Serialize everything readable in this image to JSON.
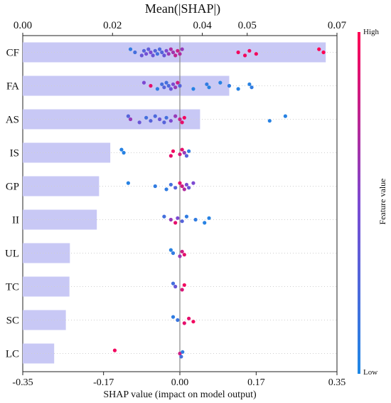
{
  "chart_data": {
    "type": "bar+scatter",
    "title": "Mean(|SHAP|)",
    "xlabel": "SHAP value (impact on model output)",
    "colorbar": {
      "label": "Feature value",
      "high": "High",
      "low": "Low",
      "low_color": "#1e88e5",
      "high_color": "#ff0052"
    },
    "top_axis": {
      "ticks": [
        "0.00",
        "0.02",
        "0.04",
        "0.05",
        "0.07"
      ],
      "tick_values": [
        0.0,
        0.02,
        0.04,
        0.05,
        0.07
      ],
      "range": [
        0,
        0.07
      ]
    },
    "bottom_axis": {
      "ticks": [
        "-0.35",
        "-0.17",
        "0.00",
        "0.17",
        "0.35"
      ],
      "tick_values": [
        -0.35,
        -0.17,
        0.0,
        0.17,
        0.35
      ],
      "range": [
        -0.35,
        0.35
      ]
    },
    "bar_color": "#c8c8f5",
    "features": [
      "CF",
      "FA",
      "AS",
      "IS",
      "GP",
      "II",
      "UL",
      "TC",
      "SC",
      "LC"
    ],
    "mean_abs_shap": [
      0.0675,
      0.046,
      0.0395,
      0.0195,
      0.017,
      0.0165,
      0.0105,
      0.0104,
      0.0096,
      0.007
    ],
    "shap_points": {
      "CF": [
        {
          "x": -0.11,
          "v": 0.1
        },
        {
          "x": -0.1,
          "v": 0.2
        },
        {
          "x": -0.085,
          "v": 0.4
        },
        {
          "x": -0.08,
          "v": 0.3
        },
        {
          "x": -0.075,
          "v": 0.45
        },
        {
          "x": -0.07,
          "v": 0.35
        },
        {
          "x": -0.065,
          "v": 0.5
        },
        {
          "x": -0.06,
          "v": 0.4
        },
        {
          "x": -0.055,
          "v": 0.3
        },
        {
          "x": -0.05,
          "v": 0.2
        },
        {
          "x": -0.045,
          "v": 0.25
        },
        {
          "x": -0.04,
          "v": 0.3
        },
        {
          "x": -0.035,
          "v": 0.4
        },
        {
          "x": -0.03,
          "v": 0.5
        },
        {
          "x": -0.025,
          "v": 0.6
        },
        {
          "x": -0.02,
          "v": 0.7
        },
        {
          "x": -0.015,
          "v": 0.65
        },
        {
          "x": -0.01,
          "v": 0.75
        },
        {
          "x": -0.005,
          "v": 0.8
        },
        {
          "x": 0.0,
          "v": 0.7
        },
        {
          "x": 0.005,
          "v": 0.6
        },
        {
          "x": 0.13,
          "v": 0.95
        },
        {
          "x": 0.145,
          "v": 0.95
        },
        {
          "x": 0.155,
          "v": 0.95
        },
        {
          "x": 0.17,
          "v": 0.95
        },
        {
          "x": 0.31,
          "v": 1.0
        },
        {
          "x": 0.32,
          "v": 1.0
        }
      ],
      "FA": [
        {
          "x": -0.08,
          "v": 0.5
        },
        {
          "x": -0.065,
          "v": 0.9
        },
        {
          "x": -0.05,
          "v": 0.1
        },
        {
          "x": -0.04,
          "v": 0.2
        },
        {
          "x": -0.035,
          "v": 0.3
        },
        {
          "x": -0.03,
          "v": 0.2
        },
        {
          "x": -0.025,
          "v": 0.25
        },
        {
          "x": -0.02,
          "v": 0.4
        },
        {
          "x": -0.015,
          "v": 0.5
        },
        {
          "x": -0.01,
          "v": 0.6
        },
        {
          "x": -0.005,
          "v": 0.8
        },
        {
          "x": 0.0,
          "v": 0.3
        },
        {
          "x": 0.03,
          "v": 0.05
        },
        {
          "x": 0.06,
          "v": 0.1
        },
        {
          "x": 0.065,
          "v": 0.05
        },
        {
          "x": 0.09,
          "v": 0.05
        },
        {
          "x": 0.11,
          "v": 0.1
        },
        {
          "x": 0.13,
          "v": 0.05
        },
        {
          "x": 0.155,
          "v": 0.05
        },
        {
          "x": 0.16,
          "v": 0.1
        }
      ],
      "AS": [
        {
          "x": -0.115,
          "v": 0.3
        },
        {
          "x": -0.11,
          "v": 0.6
        },
        {
          "x": -0.09,
          "v": 0.4
        },
        {
          "x": -0.075,
          "v": 0.2
        },
        {
          "x": -0.065,
          "v": 0.3
        },
        {
          "x": -0.055,
          "v": 0.25
        },
        {
          "x": -0.045,
          "v": 0.4
        },
        {
          "x": -0.035,
          "v": 0.3
        },
        {
          "x": -0.03,
          "v": 0.2
        },
        {
          "x": -0.02,
          "v": 0.5
        },
        {
          "x": -0.01,
          "v": 0.6
        },
        {
          "x": 0.0,
          "v": 0.8
        },
        {
          "x": 0.005,
          "v": 0.9
        },
        {
          "x": 0.01,
          "v": 0.95
        },
        {
          "x": 0.2,
          "v": 0.05
        },
        {
          "x": 0.235,
          "v": 0.05
        }
      ],
      "IS": [
        {
          "x": -0.13,
          "v": 0.05
        },
        {
          "x": -0.125,
          "v": 0.05
        },
        {
          "x": -0.02,
          "v": 0.9
        },
        {
          "x": -0.015,
          "v": 0.95
        },
        {
          "x": 0.0,
          "v": 0.85
        },
        {
          "x": 0.005,
          "v": 0.9
        },
        {
          "x": 0.01,
          "v": 0.6
        },
        {
          "x": 0.015,
          "v": 0.3
        },
        {
          "x": 0.02,
          "v": 0.1
        }
      ],
      "GP": [
        {
          "x": -0.115,
          "v": 0.05
        },
        {
          "x": -0.055,
          "v": 0.1
        },
        {
          "x": -0.03,
          "v": 0.1
        },
        {
          "x": -0.02,
          "v": 0.2
        },
        {
          "x": -0.01,
          "v": 0.3
        },
        {
          "x": 0.0,
          "v": 0.9
        },
        {
          "x": 0.005,
          "v": 0.8
        },
        {
          "x": 0.01,
          "v": 0.7
        },
        {
          "x": 0.015,
          "v": 0.5
        },
        {
          "x": 0.02,
          "v": 0.4
        },
        {
          "x": 0.03,
          "v": 0.5
        }
      ],
      "II": [
        {
          "x": -0.035,
          "v": 0.2
        },
        {
          "x": -0.02,
          "v": 0.6
        },
        {
          "x": -0.01,
          "v": 0.9
        },
        {
          "x": -0.005,
          "v": 0.5
        },
        {
          "x": 0.005,
          "v": 0.3
        },
        {
          "x": 0.015,
          "v": 0.1
        },
        {
          "x": 0.035,
          "v": 0.1
        },
        {
          "x": 0.055,
          "v": 0.05
        },
        {
          "x": 0.065,
          "v": 0.05
        }
      ],
      "UL": [
        {
          "x": -0.02,
          "v": 0.05
        },
        {
          "x": -0.015,
          "v": 0.1
        },
        {
          "x": 0.0,
          "v": 0.6
        },
        {
          "x": 0.005,
          "v": 0.8
        },
        {
          "x": 0.01,
          "v": 0.9
        }
      ],
      "TC": [
        {
          "x": -0.015,
          "v": 0.2
        },
        {
          "x": -0.01,
          "v": 0.4
        },
        {
          "x": 0.005,
          "v": 0.85
        },
        {
          "x": 0.01,
          "v": 0.95
        }
      ],
      "SC": [
        {
          "x": -0.015,
          "v": 0.1
        },
        {
          "x": -0.005,
          "v": 0.15
        },
        {
          "x": 0.01,
          "v": 0.9
        },
        {
          "x": 0.02,
          "v": 0.9
        },
        {
          "x": 0.03,
          "v": 0.95
        }
      ],
      "LC": [
        {
          "x": -0.145,
          "v": 0.95
        },
        {
          "x": 0.0,
          "v": 0.8
        },
        {
          "x": 0.003,
          "v": 0.2
        },
        {
          "x": 0.006,
          "v": 0.1
        }
      ]
    }
  }
}
